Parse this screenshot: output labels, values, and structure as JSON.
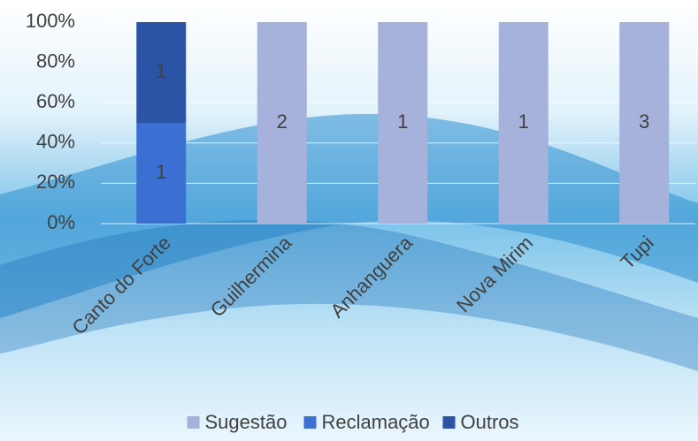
{
  "chart_data": {
    "type": "stacked_percent_bar",
    "categories": [
      "Canto do Forte",
      "Guilhermina",
      "Anhanguera",
      "Nova Mirim",
      "Tupi"
    ],
    "series": [
      {
        "name": "Sugestão",
        "color": "#a6b1dc",
        "values": [
          0,
          2,
          1,
          1,
          3
        ]
      },
      {
        "name": "Reclamação",
        "color": "#3c6fd2",
        "values": [
          1,
          0,
          0,
          0,
          0
        ]
      },
      {
        "name": "Outros",
        "color": "#2b53a6",
        "values": [
          1,
          0,
          0,
          0,
          0
        ]
      }
    ],
    "ylim": [
      0,
      100
    ],
    "yticks": [
      {
        "value": 0,
        "label": "0%"
      },
      {
        "value": 20,
        "label": "20%"
      },
      {
        "value": 40,
        "label": "40%"
      },
      {
        "value": 60,
        "label": "60%"
      },
      {
        "value": 80,
        "label": "80%"
      },
      {
        "value": 100,
        "label": "100%"
      }
    ],
    "grid": true,
    "legend": "bottom"
  }
}
